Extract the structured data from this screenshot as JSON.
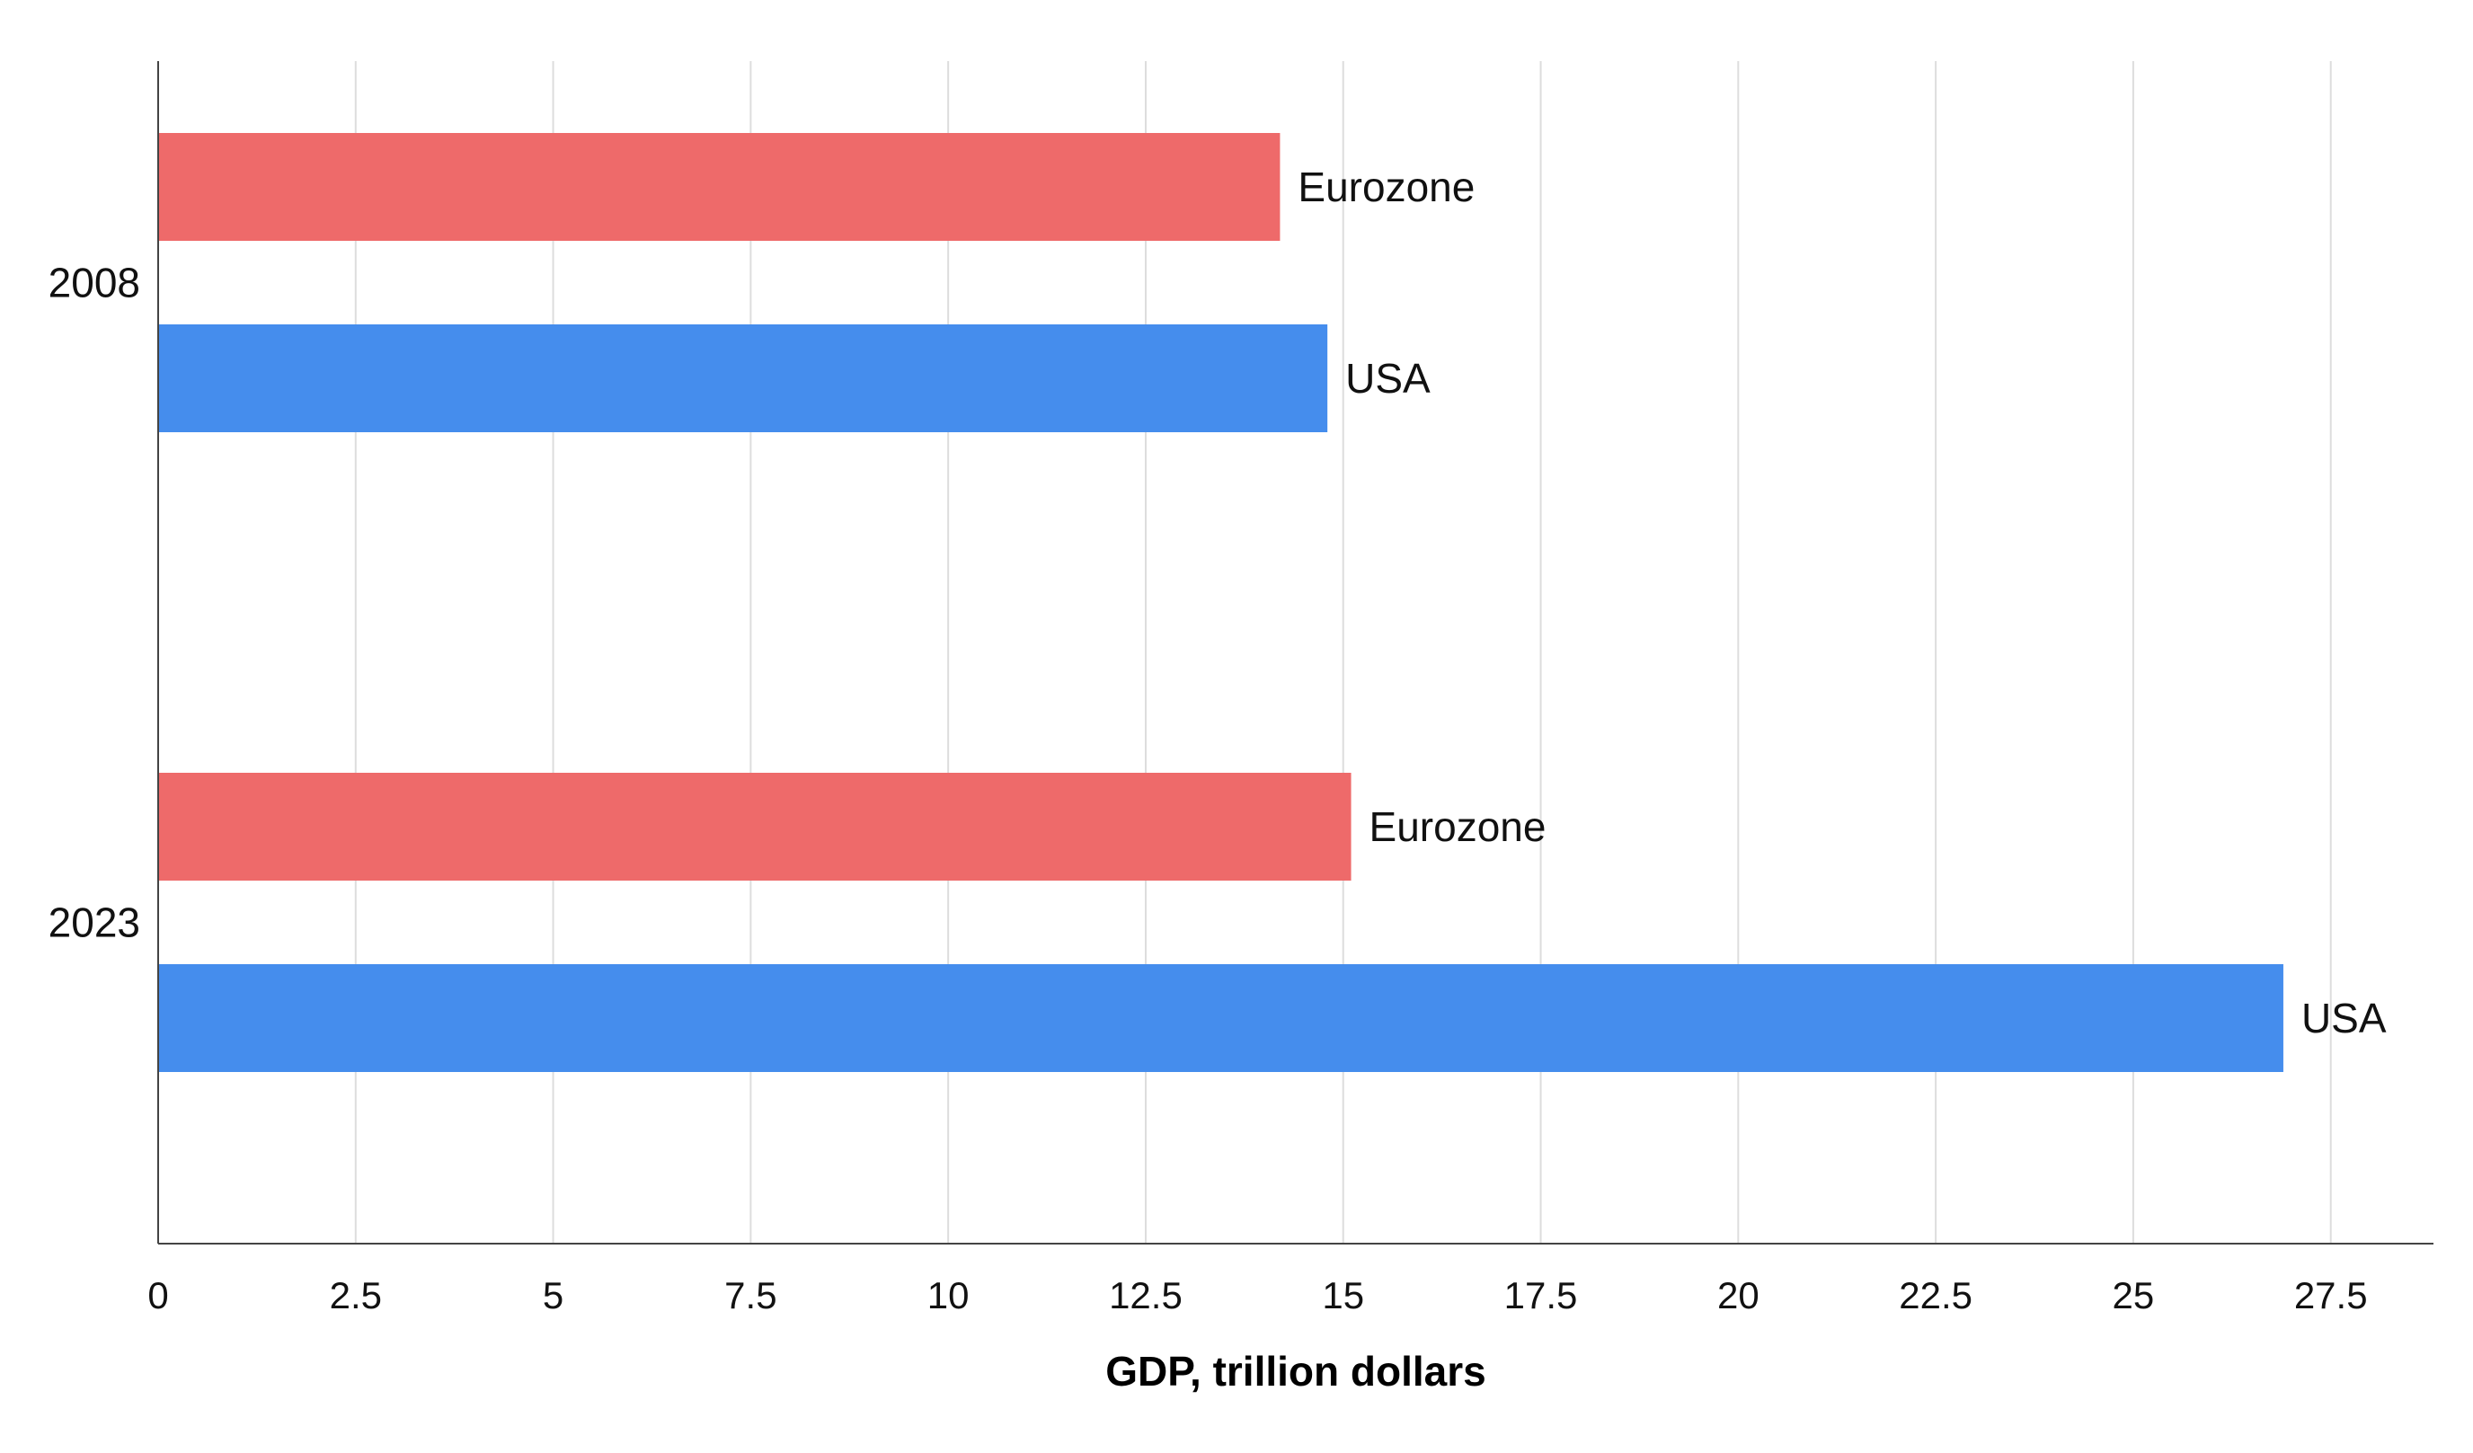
{
  "colors": {
    "Eurozone": "#ee6a6a",
    "USA": "#458ded",
    "grid": "#dddddd",
    "axis": "#444444"
  },
  "chart_data": {
    "type": "bar",
    "orientation": "horizontal",
    "title": "",
    "xlabel": "GDP, trillion dollars",
    "ylabel": "",
    "categories": [
      "2008",
      "2023"
    ],
    "series": [
      {
        "name": "Eurozone",
        "values": [
          14.2,
          15.1
        ]
      },
      {
        "name": "USA",
        "values": [
          14.8,
          26.9
        ]
      }
    ],
    "xlim": [
      0,
      28.8
    ],
    "xticks": [
      "0",
      "2.5",
      "5",
      "7.5",
      "10",
      "12.5",
      "15",
      "17.5",
      "20",
      "22.5",
      "25",
      "27.5"
    ],
    "xtick_values": [
      0,
      2.5,
      5,
      7.5,
      10,
      12.5,
      15,
      17.5,
      20,
      22.5,
      25,
      27.5
    ],
    "grid": true,
    "legend": "none (series names shown as labels next to bars)"
  }
}
